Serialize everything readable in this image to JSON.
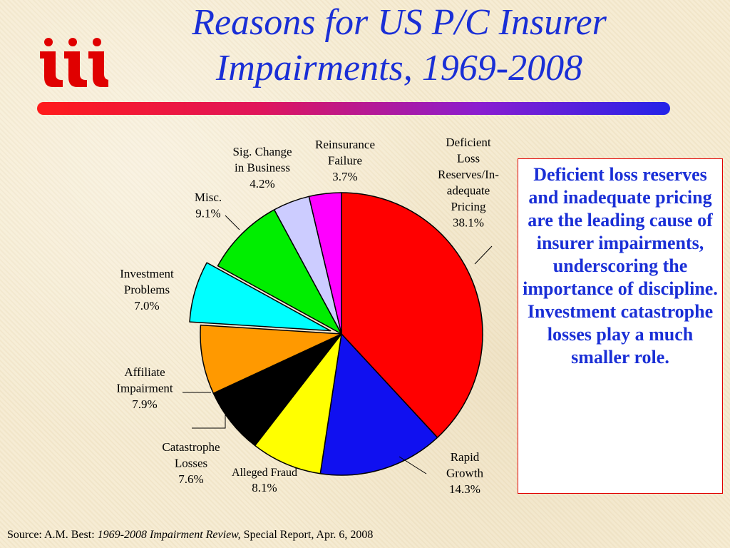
{
  "title": {
    "line1": "Reasons for US P/C Insurer",
    "line2": "Impairments, 1969-2008"
  },
  "logo": {
    "text": "iii",
    "color": "#e00000"
  },
  "callout": {
    "text": "Deficient loss reserves and inadequate pricing are the leading cause of insurer impairments, underscoring the importance of discipline. Investment catastrophe losses play a much smaller role."
  },
  "source": {
    "prefix": "Source: A.M. Best: ",
    "italic": "1969-2008 Impairment Review,",
    "suffix": " Special Report, Apr. 6, 2008"
  },
  "chart_data": {
    "type": "pie",
    "slices": [
      {
        "label_lines": [
          "Deficient",
          "Loss",
          "Reserves/In-",
          "adequate",
          "Pricing",
          "38.1%"
        ],
        "value": 38.1,
        "color": "#ff0000",
        "exploded": false
      },
      {
        "label_lines": [
          "Rapid",
          "Growth",
          "14.3%"
        ],
        "value": 14.3,
        "color": "#1010f0",
        "exploded": false
      },
      {
        "label_lines": [
          "Alleged Fraud",
          "8.1%"
        ],
        "value": 8.1,
        "color": "#ffff00",
        "exploded": false
      },
      {
        "label_lines": [
          "Catastrophe",
          "Losses",
          "7.6%"
        ],
        "value": 7.6,
        "color": "#000000",
        "exploded": false
      },
      {
        "label_lines": [
          "Affiliate",
          "Impairment",
          "7.9%"
        ],
        "value": 7.9,
        "color": "#ff9900",
        "exploded": false
      },
      {
        "label_lines": [
          "Investment",
          "Problems",
          "7.0%"
        ],
        "value": 7.0,
        "color": "#00ffff",
        "exploded": true
      },
      {
        "label_lines": [
          "Misc.",
          "9.1%"
        ],
        "value": 9.1,
        "color": "#00ee00",
        "exploded": false
      },
      {
        "label_lines": [
          "Sig. Change",
          "in Business",
          "4.2%"
        ],
        "value": 4.2,
        "color": "#ccccff",
        "exploded": false
      },
      {
        "label_lines": [
          "Reinsurance",
          "Failure",
          "3.7%"
        ],
        "value": 3.7,
        "color": "#ff00ff",
        "exploded": false
      }
    ],
    "start_angle_deg": 0,
    "direction": "clockwise"
  }
}
